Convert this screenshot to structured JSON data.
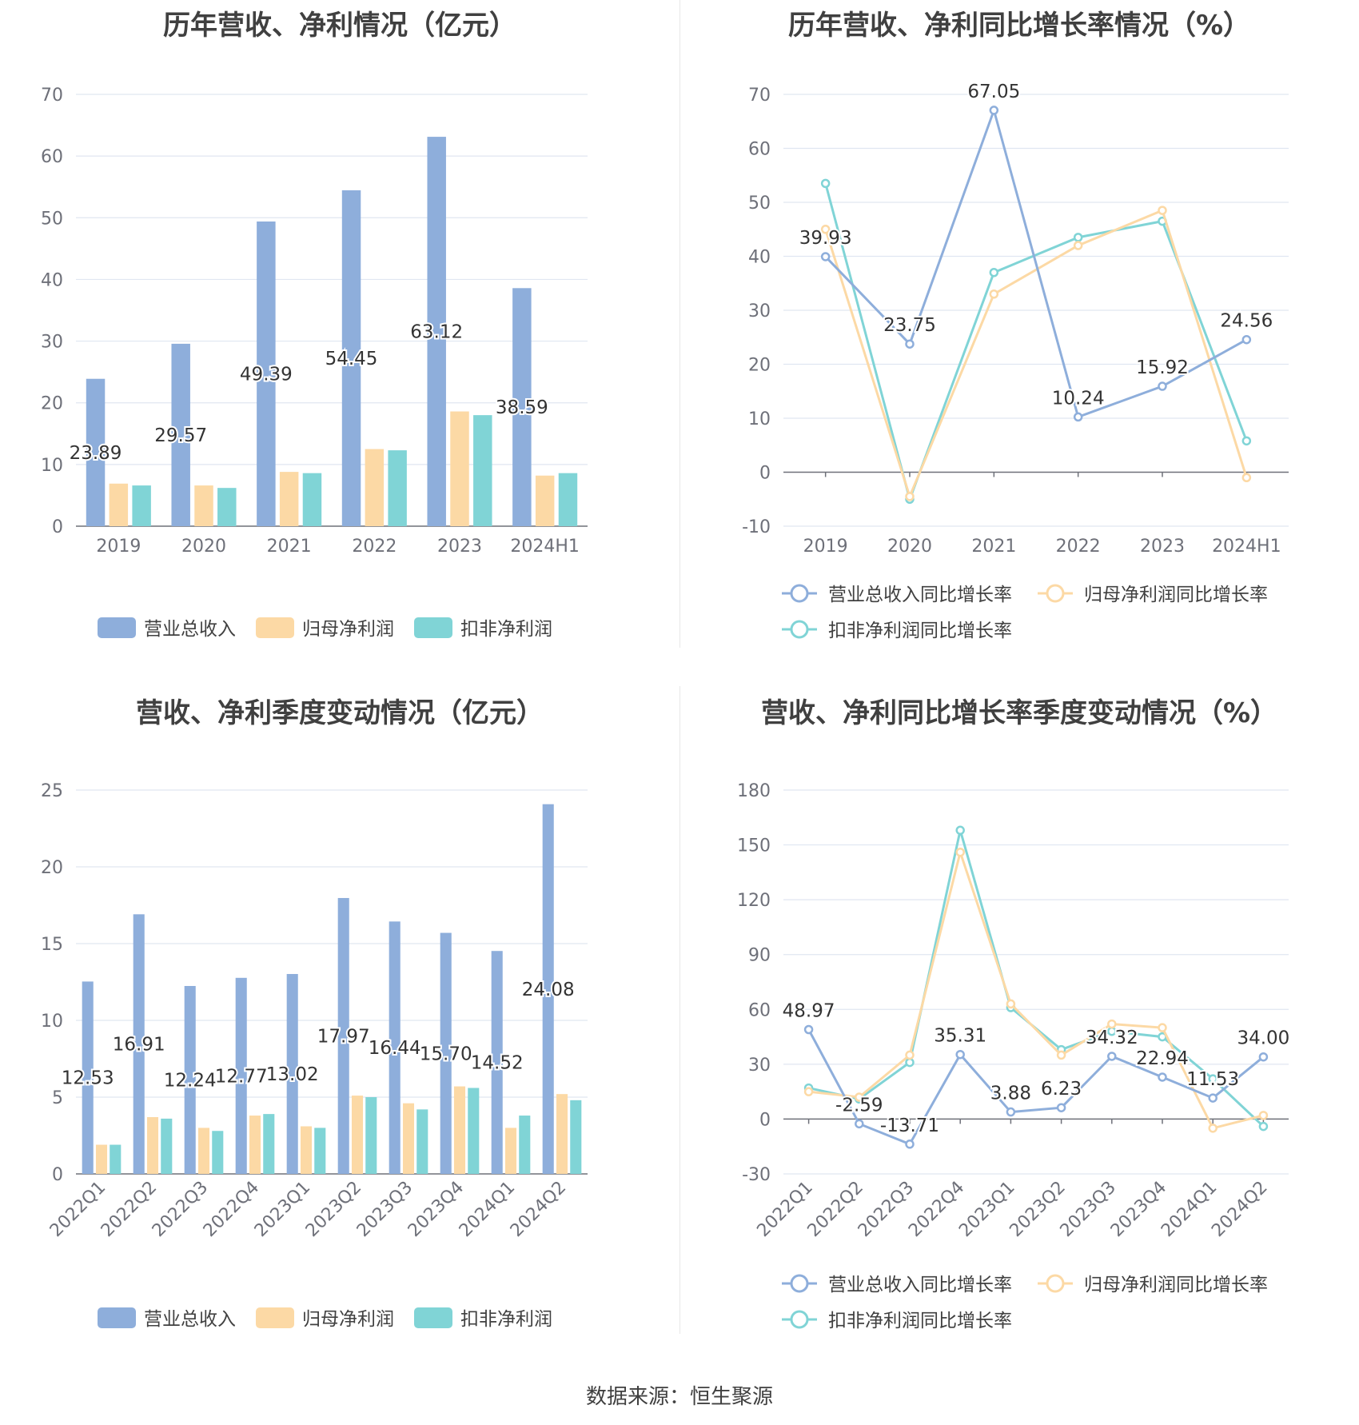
{
  "source": "数据来源：恒生聚源",
  "chart_data": [
    {
      "type": "bar",
      "title": "历年营收、净利情况（亿元）",
      "categories": [
        "2019",
        "2020",
        "2021",
        "2022",
        "2023",
        "2024H1"
      ],
      "series": [
        {
          "name": "营业总收入",
          "values": [
            23.89,
            29.57,
            49.39,
            54.45,
            63.12,
            38.59
          ],
          "color": "#8eaedb",
          "labels": [
            "23.89",
            "29.57",
            "49.39",
            "54.45",
            "63.12",
            "38.59"
          ]
        },
        {
          "name": "归母净利润",
          "values": [
            6.9,
            6.6,
            8.8,
            12.5,
            18.6,
            8.2
          ],
          "color": "#fcd9a5"
        },
        {
          "name": "扣非净利润",
          "values": [
            6.6,
            6.2,
            8.6,
            12.3,
            18.0,
            8.6
          ],
          "color": "#80d4d6"
        }
      ],
      "ylim": [
        0,
        70
      ],
      "yticks": [
        0,
        10,
        20,
        30,
        40,
        50,
        60,
        70
      ],
      "grid": true,
      "legend": "bottom"
    },
    {
      "type": "line",
      "title": "历年营收、净利同比增长率情况（%）",
      "categories": [
        "2019",
        "2020",
        "2021",
        "2022",
        "2023",
        "2024H1"
      ],
      "series": [
        {
          "name": "营业总收入同比增长率",
          "values": [
            39.93,
            23.75,
            67.05,
            10.24,
            15.92,
            24.56
          ],
          "color": "#8eaedb",
          "labels": [
            "39.93",
            "23.75",
            "67.05",
            "10.24",
            "15.92",
            "24.56"
          ]
        },
        {
          "name": "归母净利润同比增长率",
          "values": [
            45.0,
            -4.5,
            33.0,
            42.0,
            48.5,
            -1.0
          ],
          "color": "#fcd9a5"
        },
        {
          "name": "扣非净利润同比增长率",
          "values": [
            53.5,
            -5.0,
            37.0,
            43.5,
            46.5,
            5.8
          ],
          "color": "#80d4d6"
        }
      ],
      "ylim": [
        -10,
        70
      ],
      "yticks": [
        -10,
        0,
        10,
        20,
        30,
        40,
        50,
        60,
        70
      ],
      "grid": true,
      "legend": "bottom"
    },
    {
      "type": "bar",
      "title": "营收、净利季度变动情况（亿元）",
      "categories": [
        "2022Q1",
        "2022Q2",
        "2022Q3",
        "2022Q4",
        "2023Q1",
        "2023Q2",
        "2023Q3",
        "2023Q4",
        "2024Q1",
        "2024Q2"
      ],
      "series": [
        {
          "name": "营业总收入",
          "values": [
            12.53,
            16.91,
            12.24,
            12.77,
            13.02,
            17.97,
            16.44,
            15.7,
            14.52,
            24.08
          ],
          "color": "#8eaedb",
          "labels": [
            "12.53",
            "16.91",
            "12.24",
            "12.77",
            "13.02",
            "17.97",
            "16.44",
            "15.70",
            "14.52",
            "24.08"
          ]
        },
        {
          "name": "归母净利润",
          "values": [
            1.9,
            3.7,
            3.0,
            3.8,
            3.1,
            5.1,
            4.6,
            5.7,
            3.0,
            5.2
          ],
          "color": "#fcd9a5"
        },
        {
          "name": "扣非净利润",
          "values": [
            1.9,
            3.6,
            2.8,
            3.9,
            3.0,
            5.0,
            4.2,
            5.6,
            3.8,
            4.8
          ],
          "color": "#80d4d6"
        }
      ],
      "ylim": [
        0,
        25
      ],
      "yticks": [
        0,
        5,
        10,
        15,
        20,
        25
      ],
      "grid": true,
      "legend": "bottom"
    },
    {
      "type": "line",
      "title": "营收、净利同比增长率季度变动情况（%）",
      "categories": [
        "2022Q1",
        "2022Q2",
        "2022Q3",
        "2022Q4",
        "2023Q1",
        "2023Q2",
        "2023Q3",
        "2023Q4",
        "2024Q1",
        "2024Q2"
      ],
      "series": [
        {
          "name": "营业总收入同比增长率",
          "values": [
            48.97,
            -2.59,
            -13.71,
            35.31,
            3.88,
            6.23,
            34.32,
            22.94,
            11.53,
            34.0
          ],
          "color": "#8eaedb",
          "labels": [
            "48.97",
            "-2.59",
            "-13.71",
            "35.31",
            "3.88",
            "6.23",
            "34.32",
            "22.94",
            "11.53",
            "34.00"
          ]
        },
        {
          "name": "归母净利润同比增长率",
          "values": [
            15.0,
            12.0,
            35.0,
            146.0,
            63.0,
            35.0,
            52.0,
            50.0,
            -5.0,
            2.0
          ],
          "color": "#fcd9a5"
        },
        {
          "name": "扣非净利润同比增长率",
          "values": [
            17.0,
            11.0,
            31.0,
            158.0,
            61.0,
            38.0,
            48.0,
            45.0,
            22.0,
            -4.0
          ],
          "color": "#80d4d6"
        }
      ],
      "ylim": [
        -30,
        180
      ],
      "yticks": [
        -30,
        0,
        30,
        60,
        90,
        120,
        150,
        180
      ],
      "grid": true,
      "legend": "bottom"
    }
  ]
}
